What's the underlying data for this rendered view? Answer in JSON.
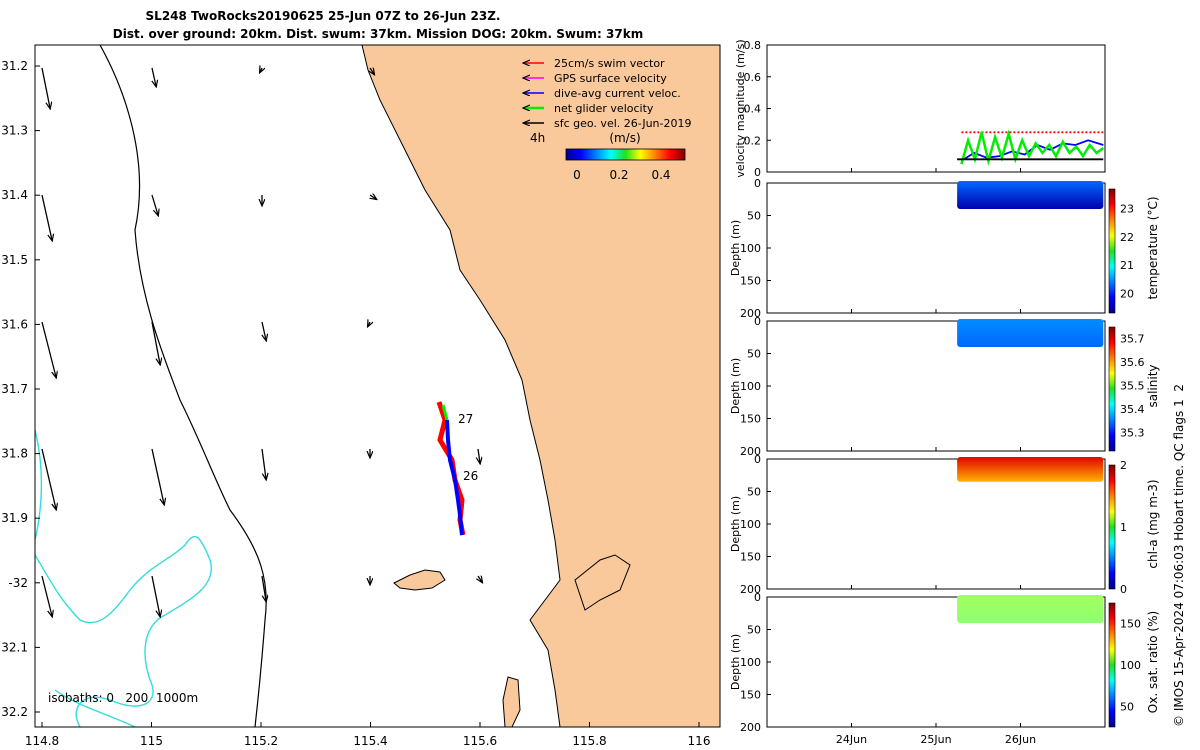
{
  "header": {
    "title_line1": "SL248 TwoRocks20190625 25-Jun 07Z to 26-Jun 23Z.",
    "title_line2": "Dist. over ground: 20km. Dist. swum: 37km. Mission DOG: 20km. Swum: 37km"
  },
  "map": {
    "legend": [
      {
        "label": "25cm/s swim vector",
        "color": "#ff0000"
      },
      {
        "label": "GPS surface velocity",
        "color": "#ff00ff"
      },
      {
        "label": "dive-avg current veloc.",
        "color": "#0000ff"
      },
      {
        "label": "net glider velocity",
        "color": "#00ee00"
      },
      {
        "label": "sfc geo. vel. 26-Jun-2019",
        "color": "#000000"
      }
    ],
    "timestep_label": "4h",
    "colorbar_title": "(m/s)",
    "colorbar_ticks": [
      "0",
      "0.2",
      "0.4"
    ],
    "isobaths_label": "isobaths: 0   200  1000m",
    "day_labels": [
      "27",
      "26"
    ],
    "lat_ticks": [
      "31.2",
      "31.3",
      "31.4",
      "31.5",
      "31.6",
      "31.7",
      "31.8",
      "31.9",
      "-32",
      "32.1",
      "32.2"
    ],
    "lon_ticks": [
      "114.8",
      "115",
      "115.2",
      "115.4",
      "115.6",
      "115.8",
      "116"
    ],
    "colors": {
      "land": "#f9c89b",
      "isobath_200": "#000000",
      "isobath_1000": "#33dddd"
    }
  },
  "chart_data": [
    {
      "type": "line",
      "title": "",
      "ylabel": "velocity magnitude (m/s)",
      "ylim": [
        0,
        0.8
      ],
      "yticks": [
        "0",
        "0.2",
        "0.4",
        "0.6",
        "0.8"
      ],
      "xlim": [
        "23Jun",
        "27Jun"
      ],
      "xticks": [
        "24Jun",
        "25Jun",
        "26Jun"
      ],
      "series": [
        {
          "color": "#ff0000",
          "x": [
            25.3,
            25.6,
            25.9,
            26.2,
            26.5,
            26.8,
            26.98
          ],
          "values": [
            0.25,
            0.25,
            0.25,
            0.25,
            0.25,
            0.25,
            0.25
          ]
        },
        {
          "color": "#0000ff",
          "x": [
            25.3,
            25.45,
            25.6,
            25.75,
            25.9,
            26.05,
            26.2,
            26.35,
            26.5,
            26.65,
            26.8,
            26.98
          ],
          "values": [
            0.07,
            0.12,
            0.09,
            0.1,
            0.13,
            0.11,
            0.17,
            0.14,
            0.18,
            0.17,
            0.2,
            0.17
          ]
        },
        {
          "color": "#00ee00",
          "x": [
            25.3,
            25.38,
            25.46,
            25.54,
            25.62,
            25.7,
            25.78,
            25.86,
            25.94,
            26.02,
            26.1,
            26.18,
            26.26,
            26.34,
            26.42,
            26.5,
            26.58,
            26.66,
            26.74,
            26.82,
            26.9,
            26.98
          ],
          "values": [
            0.05,
            0.2,
            0.08,
            0.25,
            0.07,
            0.22,
            0.09,
            0.24,
            0.08,
            0.2,
            0.1,
            0.18,
            0.12,
            0.17,
            0.1,
            0.19,
            0.12,
            0.16,
            0.1,
            0.17,
            0.12,
            0.15
          ]
        },
        {
          "color": "#000000",
          "x": [
            25.25,
            26.98
          ],
          "values": [
            0.08,
            0.08
          ]
        }
      ]
    },
    {
      "type": "heatmap",
      "ylabel": "Depth (m)",
      "ylim": [
        200,
        0
      ],
      "yticks": [
        "0",
        "50",
        "100",
        "150",
        "200"
      ],
      "xlim": [
        "23Jun",
        "27Jun"
      ],
      "data_x": [
        25.25,
        26.98
      ],
      "depth_range": [
        0,
        40
      ],
      "colorbar_label": "temperature (°C)",
      "colorbar_range": [
        19.3,
        23.7
      ],
      "colorbar_ticks": [
        "20",
        "21",
        "22",
        "23"
      ],
      "surface_value": 20.3,
      "deep_value": 19.5
    },
    {
      "type": "heatmap",
      "ylabel": "Depth (m)",
      "ylim": [
        200,
        0
      ],
      "yticks": [
        "0",
        "50",
        "100",
        "150",
        "200"
      ],
      "xlim": [
        "23Jun",
        "27Jun"
      ],
      "data_x": [
        25.25,
        26.98
      ],
      "depth_range": [
        0,
        40
      ],
      "colorbar_label": "salinity",
      "colorbar_range": [
        35.22,
        35.75
      ],
      "colorbar_ticks": [
        "35.3",
        "35.4",
        "35.5",
        "35.6",
        "35.7"
      ],
      "surface_value": 35.36,
      "deep_value": 35.34
    },
    {
      "type": "heatmap",
      "ylabel": "Depth (m)",
      "ylim": [
        200,
        0
      ],
      "yticks": [
        "0",
        "50",
        "100",
        "150",
        "200"
      ],
      "xlim": [
        "23Jun",
        "27Jun"
      ],
      "data_x": [
        25.25,
        26.98
      ],
      "depth_range": [
        0,
        35
      ],
      "colorbar_label": "chl-a (mg m-3)",
      "colorbar_range": [
        0,
        2
      ],
      "colorbar_ticks": [
        "0",
        "1",
        "2"
      ],
      "surface_value": 1.8,
      "deep_value": 1.4
    },
    {
      "type": "heatmap",
      "ylabel": "Depth (m)",
      "ylim": [
        200,
        0
      ],
      "yticks": [
        "0",
        "50",
        "100",
        "150",
        "200"
      ],
      "xlim": [
        "23Jun",
        "27Jun"
      ],
      "data_x": [
        25.25,
        26.98
      ],
      "depth_range": [
        0,
        40
      ],
      "colorbar_label": "Ox. sat. ratio (%)",
      "colorbar_range": [
        25,
        175
      ],
      "colorbar_ticks": [
        "50",
        "100",
        "150"
      ],
      "surface_value": 105,
      "deep_value": 102
    }
  ],
  "footer": {
    "side_note": "© IMOS 15-Apr-2024 07:06:03 Hobart time. QC flags 1  2"
  }
}
